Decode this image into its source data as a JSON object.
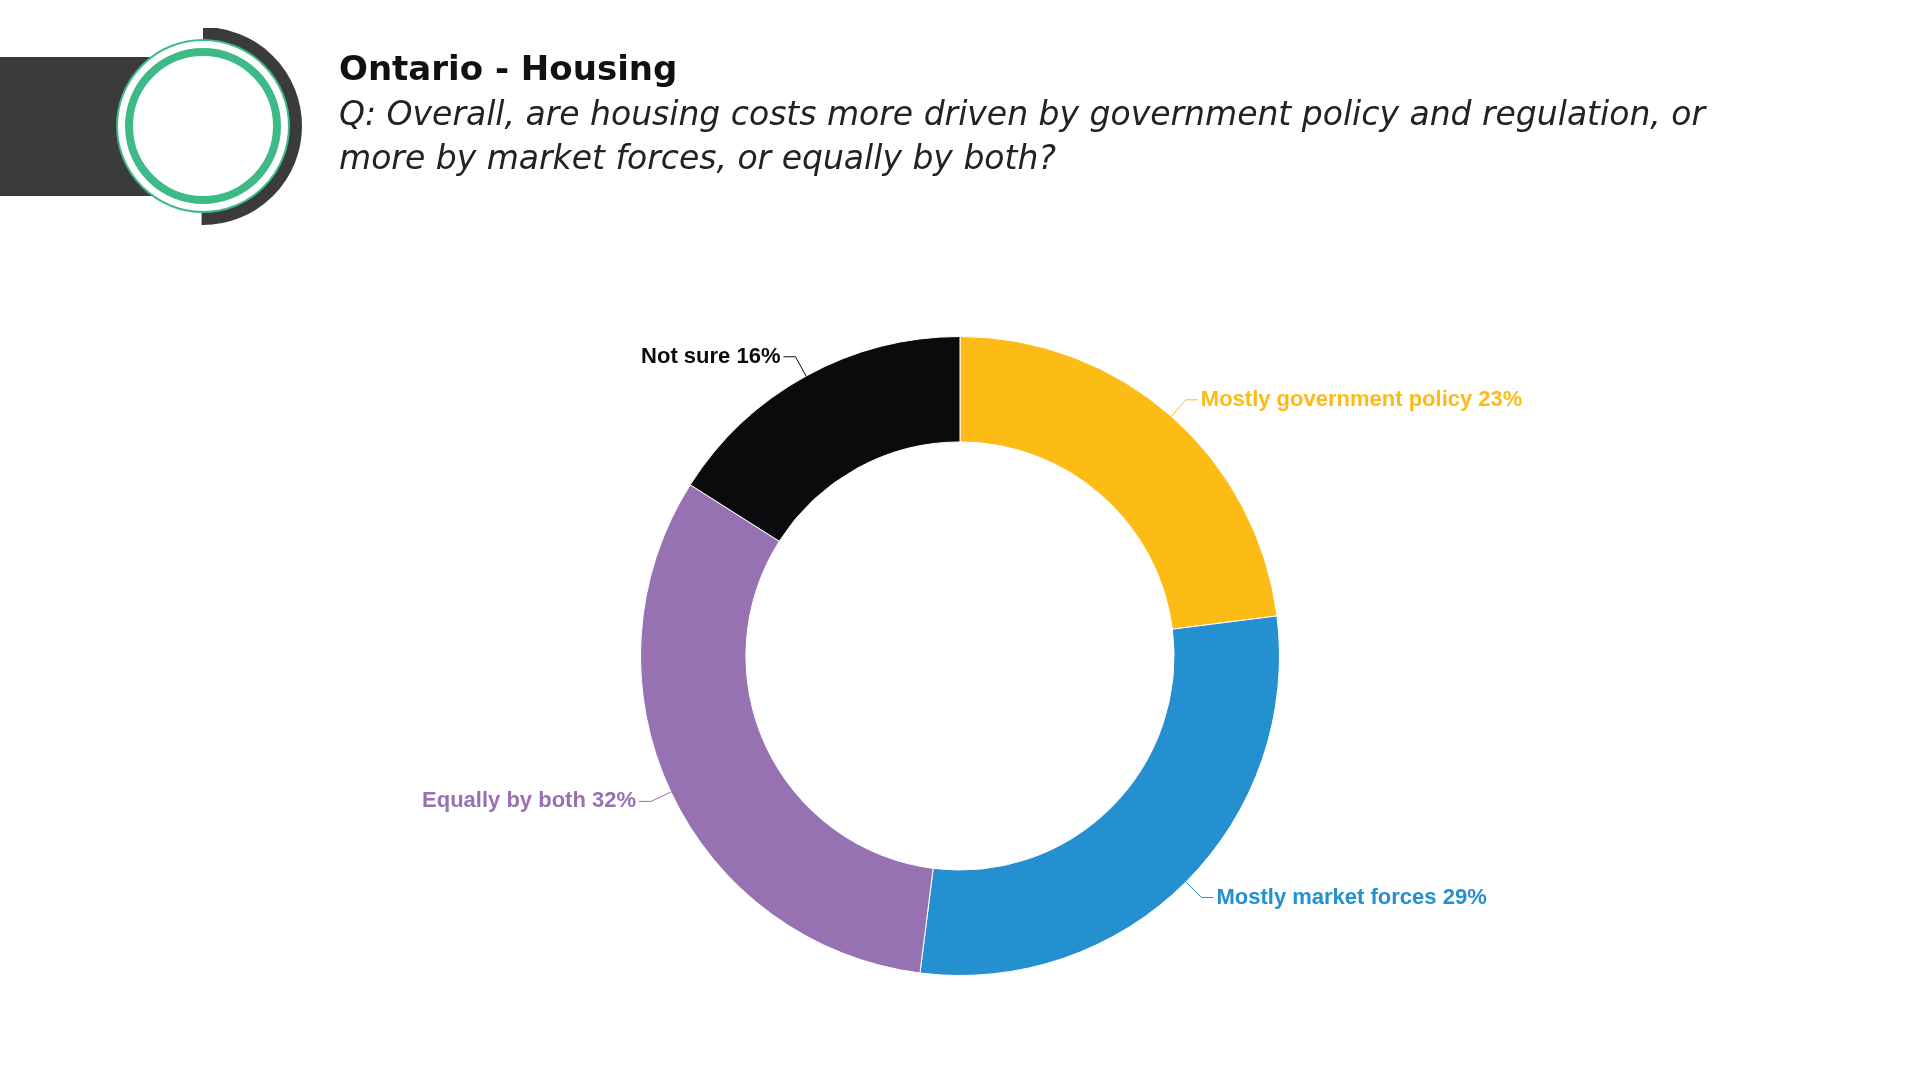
{
  "chart_data": {
    "type": "donut",
    "title": "Ontario - Housing",
    "subtitle": "Q: Overall, are housing costs more driven by government policy and regulation, or more by market forces, or equally by both?",
    "categories": [
      "Mostly government policy",
      "Mostly market forces",
      "Equally by both",
      "Not sure"
    ],
    "values": [
      23,
      29,
      32,
      16
    ],
    "value_labels": [
      "23%",
      "29%",
      "32%",
      "16%"
    ],
    "colors": [
      "#fdbb16",
      "#2490d0",
      "#9672b2",
      "#0a0b0d"
    ],
    "legend": false
  }
}
